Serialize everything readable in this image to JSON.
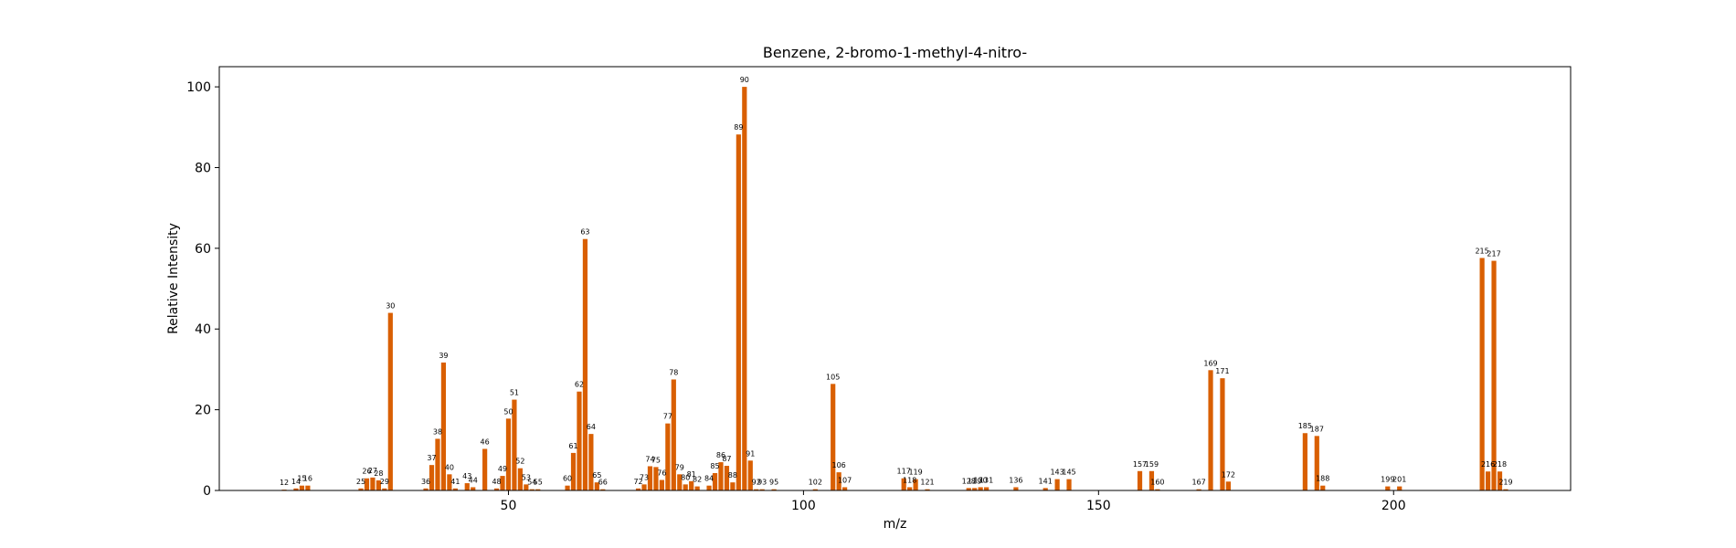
{
  "chart_data": {
    "type": "bar",
    "title": "Benzene, 2-bromo-1-methyl-4-nitro-",
    "xlabel": "m/z",
    "ylabel": "Relative Intensity",
    "xlim": [
      1,
      230
    ],
    "ylim": [
      0,
      105
    ],
    "xticks": [
      50,
      100,
      150,
      200
    ],
    "yticks": [
      0,
      20,
      40,
      60,
      80,
      100
    ],
    "grid": false,
    "bar_color": "#d95f02",
    "peaks": [
      {
        "x": 12,
        "y": 0.2
      },
      {
        "x": 14,
        "y": 0.5
      },
      {
        "x": 15,
        "y": 1.2
      },
      {
        "x": 16,
        "y": 1.2
      },
      {
        "x": 25,
        "y": 0.5
      },
      {
        "x": 26,
        "y": 3.0
      },
      {
        "x": 27,
        "y": 3.2
      },
      {
        "x": 28,
        "y": 2.5
      },
      {
        "x": 29,
        "y": 0.5
      },
      {
        "x": 30,
        "y": 44.0
      },
      {
        "x": 36,
        "y": 0.5
      },
      {
        "x": 37,
        "y": 6.3
      },
      {
        "x": 38,
        "y": 12.8
      },
      {
        "x": 39,
        "y": 31.7
      },
      {
        "x": 40,
        "y": 4.0
      },
      {
        "x": 41,
        "y": 0.5
      },
      {
        "x": 43,
        "y": 1.8
      },
      {
        "x": 44,
        "y": 0.8
      },
      {
        "x": 46,
        "y": 10.3
      },
      {
        "x": 48,
        "y": 0.5
      },
      {
        "x": 49,
        "y": 3.6
      },
      {
        "x": 50,
        "y": 17.8
      },
      {
        "x": 51,
        "y": 22.5
      },
      {
        "x": 52,
        "y": 5.5
      },
      {
        "x": 53,
        "y": 1.5
      },
      {
        "x": 54,
        "y": 0.3
      },
      {
        "x": 55,
        "y": 0.3
      },
      {
        "x": 60,
        "y": 1.2
      },
      {
        "x": 61,
        "y": 9.3
      },
      {
        "x": 62,
        "y": 24.5
      },
      {
        "x": 63,
        "y": 62.3
      },
      {
        "x": 64,
        "y": 14.0
      },
      {
        "x": 65,
        "y": 2.0
      },
      {
        "x": 66,
        "y": 0.3
      },
      {
        "x": 72,
        "y": 0.5
      },
      {
        "x": 73,
        "y": 1.5
      },
      {
        "x": 74,
        "y": 6.0
      },
      {
        "x": 75,
        "y": 5.8
      },
      {
        "x": 76,
        "y": 2.6
      },
      {
        "x": 77,
        "y": 16.6
      },
      {
        "x": 78,
        "y": 27.5
      },
      {
        "x": 79,
        "y": 4.0
      },
      {
        "x": 80,
        "y": 1.5
      },
      {
        "x": 81,
        "y": 2.3
      },
      {
        "x": 82,
        "y": 1.0
      },
      {
        "x": 84,
        "y": 1.2
      },
      {
        "x": 85,
        "y": 4.3
      },
      {
        "x": 86,
        "y": 7.0
      },
      {
        "x": 87,
        "y": 6.1
      },
      {
        "x": 88,
        "y": 2.0
      },
      {
        "x": 89,
        "y": 88.2
      },
      {
        "x": 90,
        "y": 100.0
      },
      {
        "x": 91,
        "y": 7.4
      },
      {
        "x": 92,
        "y": 0.3
      },
      {
        "x": 93,
        "y": 0.3
      },
      {
        "x": 95,
        "y": 0.3
      },
      {
        "x": 102,
        "y": 0.3
      },
      {
        "x": 105,
        "y": 26.4
      },
      {
        "x": 106,
        "y": 4.5
      },
      {
        "x": 107,
        "y": 0.8
      },
      {
        "x": 117,
        "y": 3.0
      },
      {
        "x": 118,
        "y": 0.8
      },
      {
        "x": 119,
        "y": 2.8
      },
      {
        "x": 121,
        "y": 0.3
      },
      {
        "x": 128,
        "y": 0.6
      },
      {
        "x": 129,
        "y": 0.6
      },
      {
        "x": 130,
        "y": 0.8
      },
      {
        "x": 131,
        "y": 0.8
      },
      {
        "x": 136,
        "y": 0.8
      },
      {
        "x": 141,
        "y": 0.6
      },
      {
        "x": 143,
        "y": 2.8
      },
      {
        "x": 145,
        "y": 2.8
      },
      {
        "x": 157,
        "y": 4.8
      },
      {
        "x": 159,
        "y": 4.8
      },
      {
        "x": 160,
        "y": 0.3
      },
      {
        "x": 167,
        "y": 0.3
      },
      {
        "x": 169,
        "y": 29.8
      },
      {
        "x": 171,
        "y": 27.8
      },
      {
        "x": 172,
        "y": 2.2
      },
      {
        "x": 185,
        "y": 14.2
      },
      {
        "x": 187,
        "y": 13.5
      },
      {
        "x": 188,
        "y": 1.2
      },
      {
        "x": 199,
        "y": 1.0
      },
      {
        "x": 201,
        "y": 1.0
      },
      {
        "x": 215,
        "y": 57.6
      },
      {
        "x": 216,
        "y": 4.7
      },
      {
        "x": 217,
        "y": 56.9
      },
      {
        "x": 218,
        "y": 4.7
      },
      {
        "x": 219,
        "y": 0.3
      }
    ]
  }
}
